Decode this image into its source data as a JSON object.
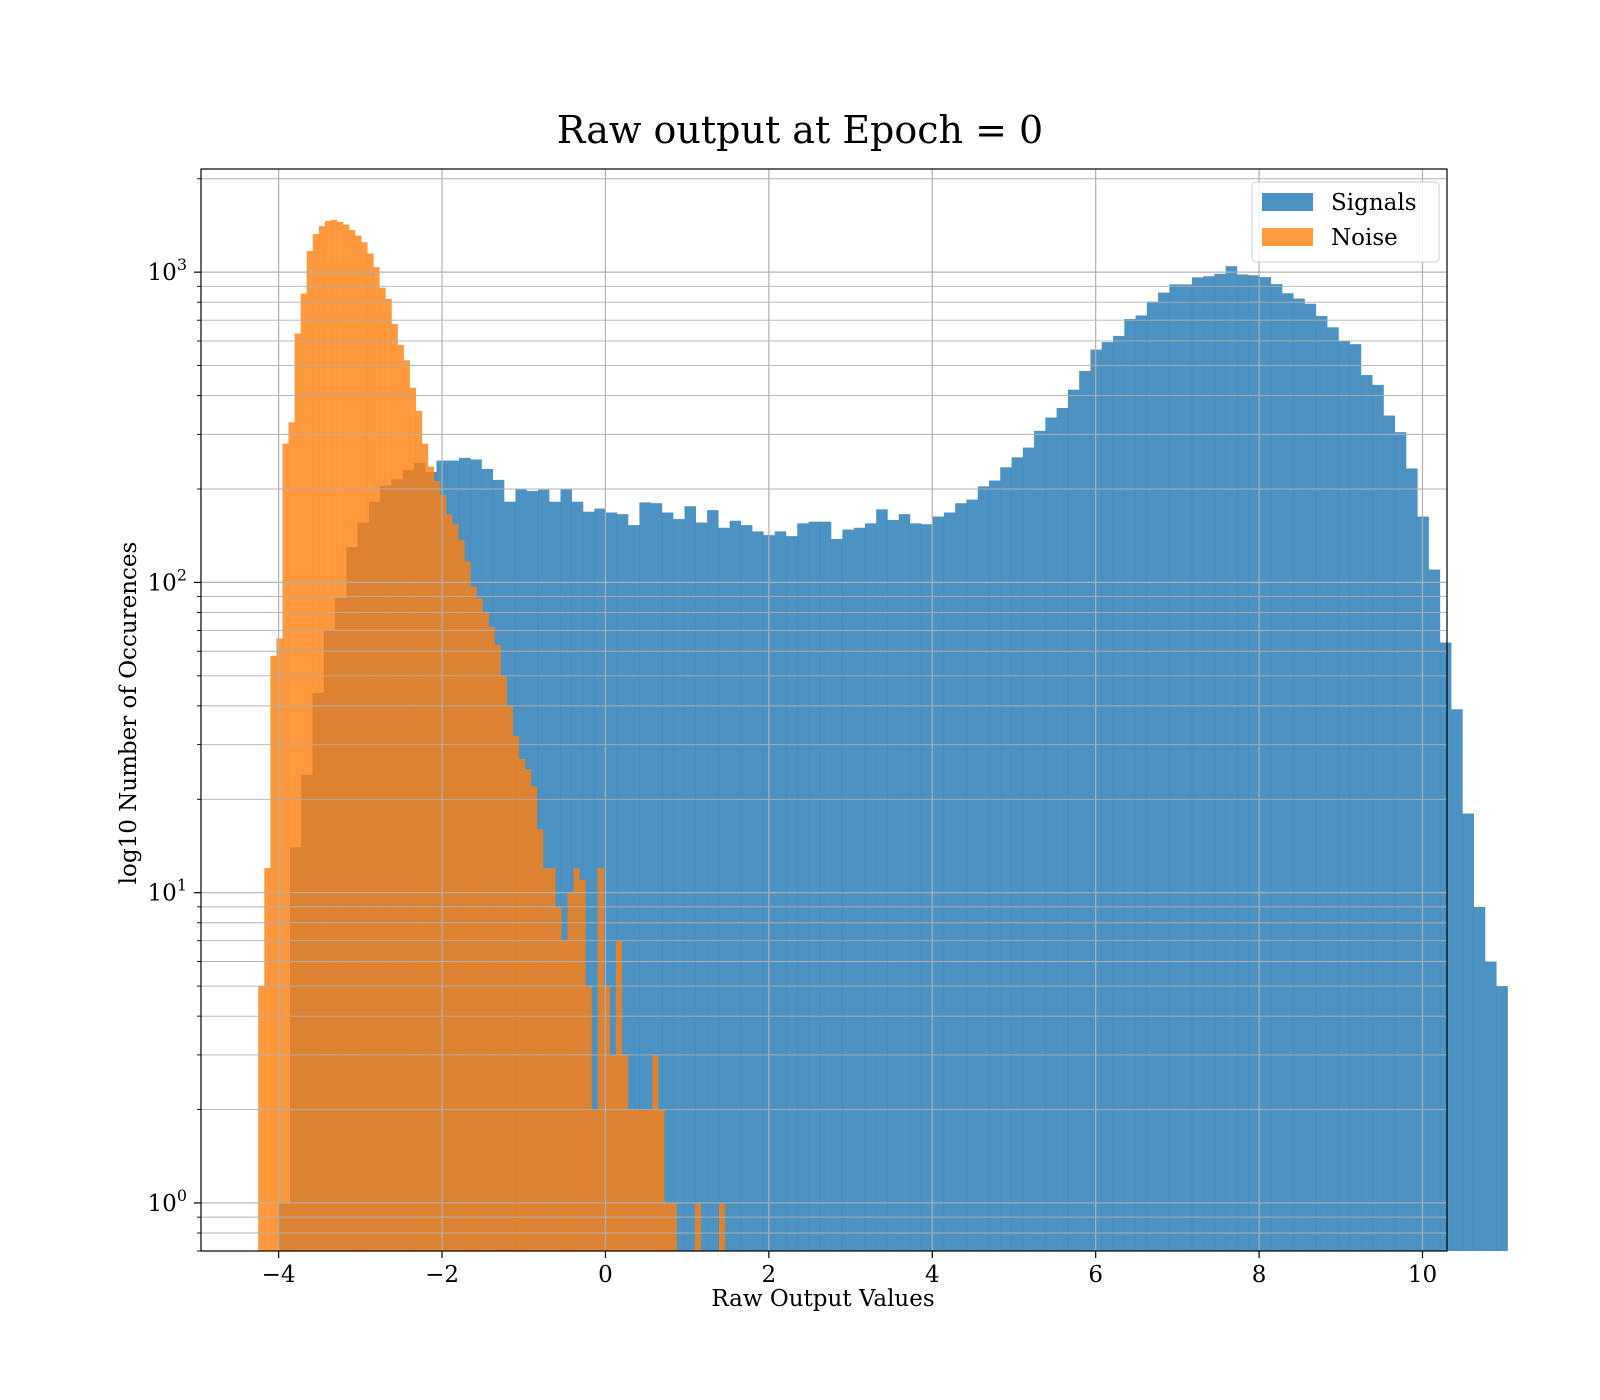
{
  "chart_data": {
    "type": "histogram",
    "title": "Raw output at Epoch = 0",
    "xlabel": "Raw Output Values",
    "ylabel": "log10 Number of Occurences",
    "xlim": [
      -4.95,
      10.3
    ],
    "ylim": [
      0.7,
      2150
    ],
    "yscale": "log",
    "x_ticks": [
      -4,
      -2,
      0,
      2,
      4,
      6,
      8,
      10
    ],
    "x_tick_labels": [
      "−4",
      "−2",
      "0",
      "2",
      "4",
      "6",
      "8",
      "10"
    ],
    "y_ticks": [
      1,
      10,
      100,
      1000
    ],
    "y_tick_labels": [
      {
        "base": "10",
        "exp": "0"
      },
      {
        "base": "10",
        "exp": "1"
      },
      {
        "base": "10",
        "exp": "2"
      },
      {
        "base": "10",
        "exp": "3"
      }
    ],
    "grid": true,
    "legend_position": "top-right",
    "series": [
      {
        "name": "Signals",
        "color": "#1f77b4",
        "opacity": 0.8,
        "bin_start": -4.0,
        "bin_width": 0.138,
        "values": [
          1,
          14,
          24,
          44,
          70,
          89,
          130,
          156,
          182,
          205,
          215,
          230,
          243,
          227,
          247,
          247,
          252,
          249,
          232,
          214,
          182,
          200,
          197,
          199,
          182,
          200,
          182,
          169,
          173,
          168,
          166,
          153,
          181,
          180,
          168,
          160,
          176,
          156,
          171,
          150,
          158,
          153,
          146,
          142,
          146,
          141,
          155,
          157,
          157,
          138,
          148,
          150,
          155,
          172,
          159,
          166,
          155,
          154,
          163,
          168,
          180,
          185,
          204,
          213,
          235,
          253,
          272,
          308,
          340,
          365,
          418,
          480,
          563,
          595,
          623,
          706,
          725,
          804,
          859,
          913,
          913,
          962,
          970,
          987,
          1045,
          983,
          977,
          964,
          915,
          855,
          822,
          791,
          722,
          664,
          602,
          586,
          466,
          433,
          345,
          305,
          233,
          163,
          110,
          64,
          39,
          18,
          9,
          6,
          5
        ]
      },
      {
        "name": "Noise",
        "color": "#ff7f0e",
        "opacity": 0.8,
        "bin_start": -4.25,
        "bin_width": 0.0742,
        "values": [
          5,
          12,
          58,
          66,
          280,
          328,
          634,
          853,
          1170,
          1326,
          1407,
          1462,
          1474,
          1452,
          1424,
          1367,
          1312,
          1249,
          1148,
          1038,
          891,
          820,
          681,
          583,
          520,
          424,
          357,
          280,
          236,
          212,
          191,
          166,
          154,
          137,
          117,
          97,
          89,
          80,
          72,
          63,
          50,
          40,
          32,
          27,
          25,
          22,
          16,
          12,
          12,
          9,
          7,
          10,
          12,
          11,
          5,
          2,
          12,
          5,
          3,
          7,
          3,
          2,
          2,
          2,
          2,
          3,
          2,
          1,
          1,
          0,
          0,
          0,
          1,
          0,
          0,
          0,
          1
        ]
      }
    ]
  }
}
